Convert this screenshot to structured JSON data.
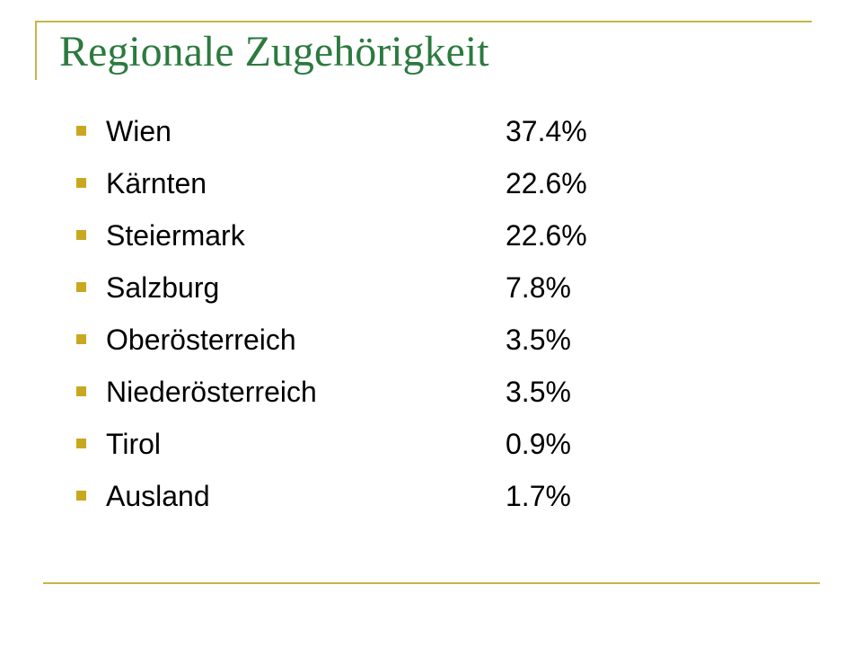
{
  "slide": {
    "title": "Regionale Zugehörigkeit",
    "accent_color": "#c8b44a",
    "title_color": "#2c7a3f",
    "bullet_color": "#c9a820"
  },
  "items": [
    {
      "region": "Wien",
      "share": "37.4%"
    },
    {
      "region": "Kärnten",
      "share": "22.6%"
    },
    {
      "region": "Steiermark",
      "share": "22.6%"
    },
    {
      "region": "Salzburg",
      "share": "7.8%"
    },
    {
      "region": "Oberösterreich",
      "share": "3.5%"
    },
    {
      "region": "Niederösterreich",
      "share": "3.5%"
    },
    {
      "region": "Tirol",
      "share": "0.9%"
    },
    {
      "region": "Ausland",
      "share": "1.7%"
    }
  ]
}
